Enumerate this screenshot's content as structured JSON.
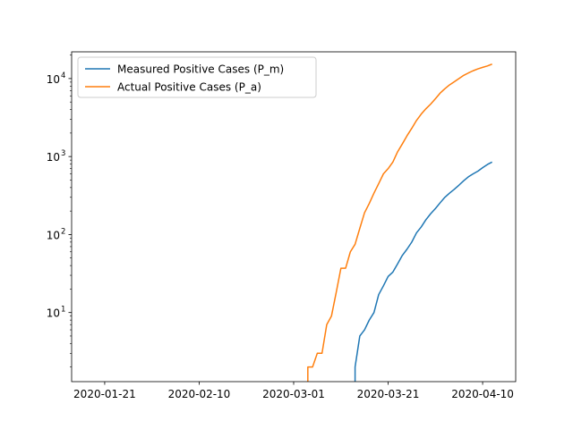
{
  "chart_data": {
    "type": "line",
    "title": "",
    "xlabel": "",
    "ylabel": "",
    "x_type": "date",
    "y_scale": "log",
    "xlim": [
      "2020-01-14",
      "2020-04-17"
    ],
    "ylim": [
      1.3,
      22000
    ],
    "x_ticks": [
      "2020-01-21",
      "2020-02-10",
      "2020-03-01",
      "2020-03-21",
      "2020-04-10"
    ],
    "y_ticks": [
      {
        "value": 10,
        "label": "10",
        "exp": "1"
      },
      {
        "value": 100,
        "label": "10",
        "exp": "2"
      },
      {
        "value": 1000,
        "label": "10",
        "exp": "3"
      },
      {
        "value": 10000,
        "label": "10",
        "exp": "4"
      }
    ],
    "grid": false,
    "legend": "top-left",
    "series": [
      {
        "name": "Measured Positive Cases (P_m)",
        "color": "#1f77b4",
        "points": [
          [
            "2020-03-14",
            1.3
          ],
          [
            "2020-03-14",
            2
          ],
          [
            "2020-03-15",
            5
          ],
          [
            "2020-03-16",
            6
          ],
          [
            "2020-03-17",
            8
          ],
          [
            "2020-03-18",
            10
          ],
          [
            "2020-03-19",
            17
          ],
          [
            "2020-03-20",
            22
          ],
          [
            "2020-03-21",
            29
          ],
          [
            "2020-03-22",
            33
          ],
          [
            "2020-03-23",
            42
          ],
          [
            "2020-03-24",
            54
          ],
          [
            "2020-03-25",
            65
          ],
          [
            "2020-03-26",
            80
          ],
          [
            "2020-03-27",
            105
          ],
          [
            "2020-03-28",
            125
          ],
          [
            "2020-03-29",
            155
          ],
          [
            "2020-03-30",
            185
          ],
          [
            "2020-03-31",
            215
          ],
          [
            "2020-04-01",
            255
          ],
          [
            "2020-04-02",
            300
          ],
          [
            "2020-04-03",
            340
          ],
          [
            "2020-04-04",
            380
          ],
          [
            "2020-04-05",
            430
          ],
          [
            "2020-04-06",
            490
          ],
          [
            "2020-04-07",
            550
          ],
          [
            "2020-04-08",
            600
          ],
          [
            "2020-04-09",
            650
          ],
          [
            "2020-04-10",
            720
          ],
          [
            "2020-04-11",
            790
          ],
          [
            "2020-04-12",
            850
          ]
        ]
      },
      {
        "name": "Actual Positive Cases (P_a)",
        "color": "#ff7f0e",
        "points": [
          [
            "2020-03-04",
            1.3
          ],
          [
            "2020-03-04",
            2
          ],
          [
            "2020-03-05",
            2
          ],
          [
            "2020-03-06",
            3
          ],
          [
            "2020-03-07",
            3
          ],
          [
            "2020-03-08",
            7
          ],
          [
            "2020-03-09",
            9
          ],
          [
            "2020-03-10",
            18
          ],
          [
            "2020-03-11",
            37
          ],
          [
            "2020-03-12",
            37
          ],
          [
            "2020-03-13",
            60
          ],
          [
            "2020-03-14",
            75
          ],
          [
            "2020-03-15",
            120
          ],
          [
            "2020-03-16",
            190
          ],
          [
            "2020-03-17",
            250
          ],
          [
            "2020-03-18",
            340
          ],
          [
            "2020-03-19",
            450
          ],
          [
            "2020-03-20",
            600
          ],
          [
            "2020-03-21",
            700
          ],
          [
            "2020-03-22",
            850
          ],
          [
            "2020-03-23",
            1150
          ],
          [
            "2020-03-24",
            1450
          ],
          [
            "2020-03-25",
            1850
          ],
          [
            "2020-03-26",
            2300
          ],
          [
            "2020-03-27",
            2900
          ],
          [
            "2020-03-28",
            3500
          ],
          [
            "2020-03-29",
            4100
          ],
          [
            "2020-03-30",
            4700
          ],
          [
            "2020-03-31",
            5500
          ],
          [
            "2020-04-01",
            6500
          ],
          [
            "2020-04-02",
            7400
          ],
          [
            "2020-04-03",
            8300
          ],
          [
            "2020-04-04",
            9100
          ],
          [
            "2020-04-05",
            10000
          ],
          [
            "2020-04-06",
            11000
          ],
          [
            "2020-04-07",
            11800
          ],
          [
            "2020-04-08",
            12600
          ],
          [
            "2020-04-09",
            13300
          ],
          [
            "2020-04-10",
            13900
          ],
          [
            "2020-04-11",
            14500
          ],
          [
            "2020-04-12",
            15300
          ]
        ]
      }
    ]
  }
}
